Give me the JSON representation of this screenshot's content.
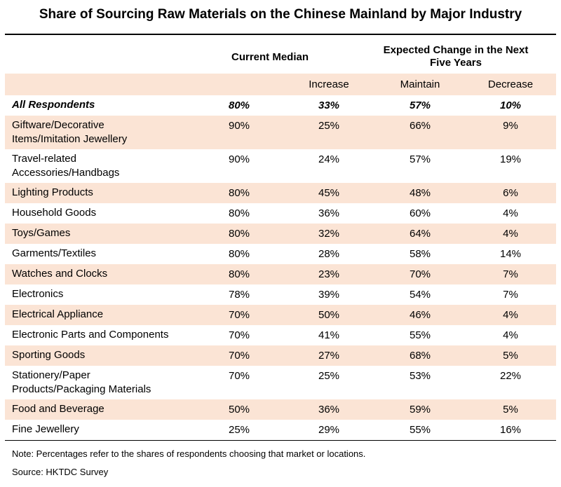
{
  "chart_data": {
    "type": "table",
    "title": "Share of Sourcing Raw Materials on the Chinese Mainland by Major Industry",
    "header": {
      "current_median": "Current Median",
      "expected_change_line1": "Expected Change in the Next",
      "expected_change_line2": "Five Years",
      "sub_increase": "Increase",
      "sub_maintain": "Maintain",
      "sub_decrease": "Decrease"
    },
    "rows": [
      {
        "label": [
          "All Respondents"
        ],
        "median": "80%",
        "increase": "33%",
        "maintain": "57%",
        "decrease": "10%",
        "emphasis": true
      },
      {
        "label": [
          "Giftware/Decorative",
          "Items/Imitation Jewellery"
        ],
        "median": "90%",
        "increase": "25%",
        "maintain": "66%",
        "decrease": "9%"
      },
      {
        "label": [
          "Travel-related",
          "Accessories/Handbags"
        ],
        "median": "90%",
        "increase": "24%",
        "maintain": "57%",
        "decrease": "19%"
      },
      {
        "label": [
          "Lighting Products"
        ],
        "median": "80%",
        "increase": "45%",
        "maintain": "48%",
        "decrease": "6%"
      },
      {
        "label": [
          "Household Goods"
        ],
        "median": "80%",
        "increase": "36%",
        "maintain": "60%",
        "decrease": "4%"
      },
      {
        "label": [
          "Toys/Games"
        ],
        "median": "80%",
        "increase": "32%",
        "maintain": "64%",
        "decrease": "4%"
      },
      {
        "label": [
          "Garments/Textiles"
        ],
        "median": "80%",
        "increase": "28%",
        "maintain": "58%",
        "decrease": "14%"
      },
      {
        "label": [
          "Watches and Clocks"
        ],
        "median": "80%",
        "increase": "23%",
        "maintain": "70%",
        "decrease": "7%"
      },
      {
        "label": [
          "Electronics"
        ],
        "median": "78%",
        "increase": "39%",
        "maintain": "54%",
        "decrease": "7%"
      },
      {
        "label": [
          "Electrical Appliance"
        ],
        "median": "70%",
        "increase": "50%",
        "maintain": "46%",
        "decrease": "4%"
      },
      {
        "label": [
          "Electronic Parts and Components"
        ],
        "median": "70%",
        "increase": "41%",
        "maintain": "55%",
        "decrease": "4%"
      },
      {
        "label": [
          "Sporting Goods"
        ],
        "median": "70%",
        "increase": "27%",
        "maintain": "68%",
        "decrease": "5%"
      },
      {
        "label": [
          "Stationery/Paper",
          "Products/Packaging Materials"
        ],
        "median": "70%",
        "increase": "25%",
        "maintain": "53%",
        "decrease": "22%"
      },
      {
        "label": [
          "Food and Beverage"
        ],
        "median": "50%",
        "increase": "36%",
        "maintain": "59%",
        "decrease": "5%"
      },
      {
        "label": [
          "Fine Jewellery"
        ],
        "median": "25%",
        "increase": "29%",
        "maintain": "55%",
        "decrease": "16%"
      }
    ],
    "note": "Note: Percentages refer to the shares of respondents choosing that market or locations.",
    "source": "Source: HKTDC Survey",
    "colors": {
      "shade": "#fbe4d5",
      "rule": "#000000"
    }
  }
}
